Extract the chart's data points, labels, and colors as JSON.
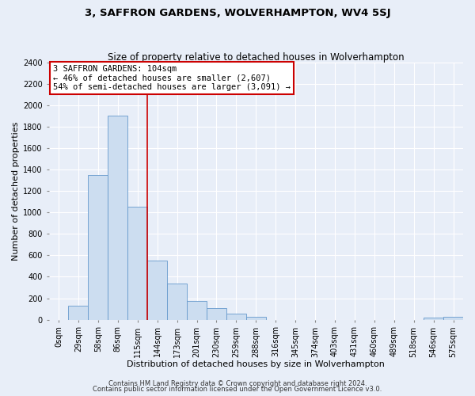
{
  "title": "3, SAFFRON GARDENS, WOLVERHAMPTON, WV4 5SJ",
  "subtitle": "Size of property relative to detached houses in Wolverhampton",
  "xlabel": "Distribution of detached houses by size in Wolverhampton",
  "ylabel": "Number of detached properties",
  "bar_labels": [
    "0sqm",
    "29sqm",
    "58sqm",
    "86sqm",
    "115sqm",
    "144sqm",
    "173sqm",
    "201sqm",
    "230sqm",
    "259sqm",
    "288sqm",
    "316sqm",
    "345sqm",
    "374sqm",
    "403sqm",
    "431sqm",
    "460sqm",
    "489sqm",
    "518sqm",
    "546sqm",
    "575sqm"
  ],
  "bar_values": [
    0,
    130,
    1350,
    1900,
    1050,
    550,
    335,
    175,
    110,
    60,
    30,
    0,
    0,
    0,
    0,
    0,
    0,
    0,
    0,
    20,
    25
  ],
  "bar_color": "#ccddf0",
  "bar_edge_color": "#6699cc",
  "vline_x": 4.5,
  "vline_color": "#cc0000",
  "ylim": [
    0,
    2400
  ],
  "yticks": [
    0,
    200,
    400,
    600,
    800,
    1000,
    1200,
    1400,
    1600,
    1800,
    2000,
    2200,
    2400
  ],
  "annotation_title": "3 SAFFRON GARDENS: 104sqm",
  "annotation_line1": "← 46% of detached houses are smaller (2,607)",
  "annotation_line2": "54% of semi-detached houses are larger (3,091) →",
  "annotation_box_facecolor": "#ffffff",
  "annotation_box_edgecolor": "#cc0000",
  "footer1": "Contains HM Land Registry data © Crown copyright and database right 2024.",
  "footer2": "Contains public sector information licensed under the Open Government Licence v3.0.",
  "fig_facecolor": "#e8eef8",
  "axes_facecolor": "#e8eef8",
  "grid_color": "#ffffff",
  "title_fontsize": 9.5,
  "subtitle_fontsize": 8.5,
  "xlabel_fontsize": 8,
  "ylabel_fontsize": 8,
  "tick_fontsize": 7,
  "annotation_fontsize": 7.5,
  "footer_fontsize": 6
}
